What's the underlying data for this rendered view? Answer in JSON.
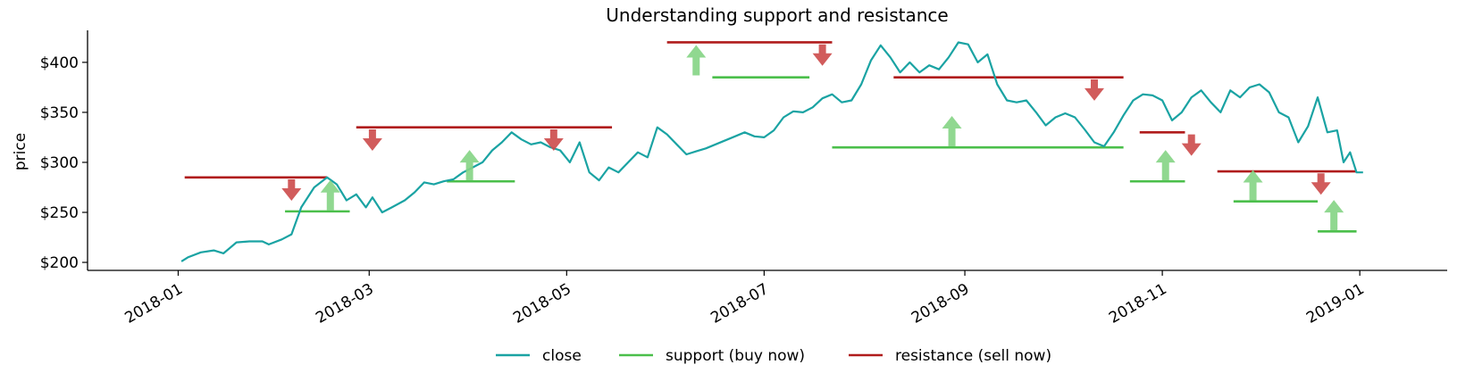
{
  "chart_data": {
    "type": "line",
    "title": "Understanding support and resistance",
    "xlabel": "",
    "ylabel": "price",
    "x_range": [
      "2017-12-04",
      "2019-01-28"
    ],
    "ylim": [
      192,
      432
    ],
    "grid": false,
    "legend_placement": "bottom-center",
    "x_ticks": [
      "2018-01-01",
      "2018-03-01",
      "2018-05-01",
      "2018-07-01",
      "2018-09-01",
      "2018-11-01",
      "2019-01-01"
    ],
    "x_tick_labels": [
      "2018-01",
      "2018-03",
      "2018-05",
      "2018-07",
      "2018-09",
      "2018-11",
      "2019-01"
    ],
    "y_ticks": [
      200,
      250,
      300,
      350,
      400
    ],
    "y_tick_labels": [
      "$200",
      "$250",
      "$300",
      "$350",
      "$400"
    ],
    "colors": {
      "close": "#1aa3a3",
      "support": "#4bbf4b",
      "resistance": "#b01c1c",
      "support_arrow": "#84d484",
      "resistance_arrow": "#cc4a4a"
    },
    "series": [
      {
        "name": "close",
        "points": [
          [
            "2018-01-02",
            201
          ],
          [
            "2018-01-04",
            205
          ],
          [
            "2018-01-08",
            210
          ],
          [
            "2018-01-12",
            212
          ],
          [
            "2018-01-15",
            209
          ],
          [
            "2018-01-19",
            220
          ],
          [
            "2018-01-23",
            221
          ],
          [
            "2018-01-27",
            221
          ],
          [
            "2018-01-29",
            218
          ],
          [
            "2018-02-02",
            223
          ],
          [
            "2018-02-05",
            228
          ],
          [
            "2018-02-08",
            255
          ],
          [
            "2018-02-12",
            275
          ],
          [
            "2018-02-16",
            285
          ],
          [
            "2018-02-19",
            278
          ],
          [
            "2018-02-22",
            262
          ],
          [
            "2018-02-25",
            268
          ],
          [
            "2018-02-28",
            255
          ],
          [
            "2018-03-02",
            265
          ],
          [
            "2018-03-05",
            250
          ],
          [
            "2018-03-08",
            255
          ],
          [
            "2018-03-12",
            262
          ],
          [
            "2018-03-15",
            270
          ],
          [
            "2018-03-18",
            280
          ],
          [
            "2018-03-21",
            278
          ],
          [
            "2018-03-24",
            281
          ],
          [
            "2018-03-27",
            283
          ],
          [
            "2018-03-30",
            290
          ],
          [
            "2018-04-02",
            295
          ],
          [
            "2018-04-05",
            300
          ],
          [
            "2018-04-08",
            312
          ],
          [
            "2018-04-11",
            320
          ],
          [
            "2018-04-14",
            330
          ],
          [
            "2018-04-17",
            323
          ],
          [
            "2018-04-20",
            318
          ],
          [
            "2018-04-23",
            320
          ],
          [
            "2018-04-26",
            315
          ],
          [
            "2018-04-29",
            312
          ],
          [
            "2018-05-02",
            300
          ],
          [
            "2018-05-05",
            320
          ],
          [
            "2018-05-08",
            290
          ],
          [
            "2018-05-11",
            282
          ],
          [
            "2018-05-14",
            295
          ],
          [
            "2018-05-17",
            290
          ],
          [
            "2018-05-20",
            300
          ],
          [
            "2018-05-23",
            310
          ],
          [
            "2018-05-26",
            305
          ],
          [
            "2018-05-29",
            335
          ],
          [
            "2018-06-01",
            328
          ],
          [
            "2018-06-04",
            318
          ],
          [
            "2018-06-07",
            308
          ],
          [
            "2018-06-10",
            311
          ],
          [
            "2018-06-13",
            314
          ],
          [
            "2018-06-16",
            318
          ],
          [
            "2018-06-19",
            322
          ],
          [
            "2018-06-22",
            326
          ],
          [
            "2018-06-25",
            330
          ],
          [
            "2018-06-28",
            326
          ],
          [
            "2018-07-01",
            325
          ],
          [
            "2018-07-04",
            332
          ],
          [
            "2018-07-07",
            345
          ],
          [
            "2018-07-10",
            351
          ],
          [
            "2018-07-13",
            350
          ],
          [
            "2018-07-16",
            355
          ],
          [
            "2018-07-19",
            364
          ],
          [
            "2018-07-22",
            368
          ],
          [
            "2018-07-25",
            360
          ],
          [
            "2018-07-28",
            362
          ],
          [
            "2018-07-31",
            378
          ],
          [
            "2018-08-03",
            402
          ],
          [
            "2018-08-06",
            417
          ],
          [
            "2018-08-09",
            405
          ],
          [
            "2018-08-12",
            390
          ],
          [
            "2018-08-15",
            400
          ],
          [
            "2018-08-18",
            390
          ],
          [
            "2018-08-21",
            397
          ],
          [
            "2018-08-24",
            393
          ],
          [
            "2018-08-27",
            405
          ],
          [
            "2018-08-30",
            420
          ],
          [
            "2018-09-02",
            418
          ],
          [
            "2018-09-05",
            400
          ],
          [
            "2018-09-08",
            408
          ],
          [
            "2018-09-11",
            378
          ],
          [
            "2018-09-14",
            362
          ],
          [
            "2018-09-17",
            360
          ],
          [
            "2018-09-20",
            362
          ],
          [
            "2018-09-23",
            350
          ],
          [
            "2018-09-26",
            337
          ],
          [
            "2018-09-29",
            345
          ],
          [
            "2018-10-02",
            349
          ],
          [
            "2018-10-05",
            345
          ],
          [
            "2018-10-08",
            333
          ],
          [
            "2018-10-11",
            320
          ],
          [
            "2018-10-14",
            316
          ],
          [
            "2018-10-17",
            330
          ],
          [
            "2018-10-20",
            347
          ],
          [
            "2018-10-23",
            362
          ],
          [
            "2018-10-26",
            368
          ],
          [
            "2018-10-29",
            367
          ],
          [
            "2018-11-01",
            362
          ],
          [
            "2018-11-04",
            342
          ],
          [
            "2018-11-07",
            350
          ],
          [
            "2018-11-10",
            365
          ],
          [
            "2018-11-13",
            372
          ],
          [
            "2018-11-16",
            360
          ],
          [
            "2018-11-19",
            350
          ],
          [
            "2018-11-22",
            372
          ],
          [
            "2018-11-25",
            365
          ],
          [
            "2018-11-28",
            375
          ],
          [
            "2018-12-01",
            378
          ],
          [
            "2018-12-04",
            370
          ],
          [
            "2018-12-07",
            350
          ],
          [
            "2018-12-10",
            345
          ],
          [
            "2018-12-13",
            320
          ],
          [
            "2018-12-16",
            336
          ],
          [
            "2018-12-19",
            365
          ],
          [
            "2018-12-22",
            330
          ],
          [
            "2018-12-25",
            332
          ],
          [
            "2018-12-27",
            300
          ],
          [
            "2018-12-29",
            310
          ],
          [
            "2018-12-31",
            290
          ],
          [
            "2019-01-02",
            290
          ]
        ]
      }
    ],
    "support_lines": [
      {
        "start": "2018-02-03",
        "end": "2018-02-23",
        "y": 251
      },
      {
        "start": "2018-03-25",
        "end": "2018-04-15",
        "y": 281
      },
      {
        "start": "2018-06-15",
        "end": "2018-07-15",
        "y": 385
      },
      {
        "start": "2018-07-22",
        "end": "2018-10-20",
        "y": 315
      },
      {
        "start": "2018-10-22",
        "end": "2018-11-08",
        "y": 281
      },
      {
        "start": "2018-11-23",
        "end": "2018-12-19",
        "y": 261
      },
      {
        "start": "2018-12-19",
        "end": "2018-12-31",
        "y": 231
      }
    ],
    "resistance_lines": [
      {
        "start": "2018-01-03",
        "end": "2018-02-16",
        "y": 285
      },
      {
        "start": "2018-02-25",
        "end": "2018-05-15",
        "y": 335
      },
      {
        "start": "2018-06-01",
        "end": "2018-07-22",
        "y": 420
      },
      {
        "start": "2018-08-10",
        "end": "2018-10-20",
        "y": 385
      },
      {
        "start": "2018-10-25",
        "end": "2018-11-08",
        "y": 330
      },
      {
        "start": "2018-11-18",
        "end": "2018-12-31",
        "y": 291
      }
    ],
    "support_arrows": [
      {
        "x": "2018-02-17",
        "y": 252
      },
      {
        "x": "2018-04-01",
        "y": 282
      },
      {
        "x": "2018-06-10",
        "y": 387
      },
      {
        "x": "2018-08-28",
        "y": 316
      },
      {
        "x": "2018-11-02",
        "y": 282
      },
      {
        "x": "2018-11-29",
        "y": 262
      },
      {
        "x": "2018-12-24",
        "y": 232
      }
    ],
    "resistance_arrows": [
      {
        "x": "2018-02-05",
        "y": 283
      },
      {
        "x": "2018-03-02",
        "y": 333
      },
      {
        "x": "2018-04-27",
        "y": 333
      },
      {
        "x": "2018-07-19",
        "y": 418
      },
      {
        "x": "2018-10-11",
        "y": 383
      },
      {
        "x": "2018-11-10",
        "y": 328
      },
      {
        "x": "2018-12-20",
        "y": 289
      }
    ],
    "legend": [
      {
        "label": "close",
        "key": "close"
      },
      {
        "label": "support (buy now)",
        "key": "support"
      },
      {
        "label": "resistance (sell now)",
        "key": "resistance"
      }
    ]
  }
}
